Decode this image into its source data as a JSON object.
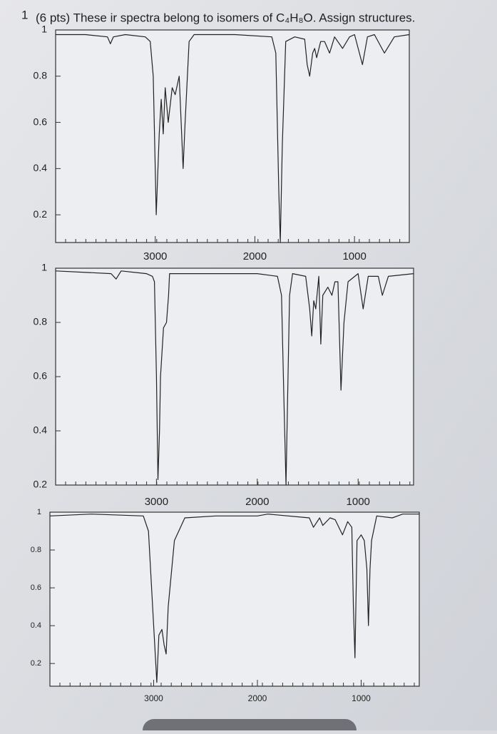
{
  "heading": {
    "number": "1",
    "text": "(6 pts) These ir spectra belong to isomers of C₄H₈O.  Assign structures."
  },
  "chart_data": [
    {
      "type": "line",
      "color": "#222222",
      "x": [
        4000,
        3700,
        3480,
        3450,
        3420,
        3300,
        3100,
        3050,
        3020,
        2990,
        2960,
        2940,
        2920,
        2900,
        2870,
        2830,
        2800,
        2760,
        2720,
        2700,
        2660,
        2610,
        2200,
        1830,
        1790,
        1760,
        1745,
        1725,
        1690,
        1600,
        1500,
        1475,
        1450,
        1420,
        1400,
        1380,
        1340,
        1300,
        1250,
        1200,
        1120,
        1050,
        1000,
        920,
        870,
        800,
        700,
        600,
        450
      ],
      "values": [
        0.98,
        0.98,
        0.97,
        0.94,
        0.97,
        0.98,
        0.97,
        0.95,
        0.8,
        0.2,
        0.55,
        0.7,
        0.55,
        0.75,
        0.6,
        0.75,
        0.72,
        0.8,
        0.4,
        0.6,
        0.95,
        0.98,
        0.98,
        0.97,
        0.9,
        0.3,
        0.08,
        0.5,
        0.95,
        0.97,
        0.96,
        0.85,
        0.8,
        0.9,
        0.92,
        0.88,
        0.95,
        0.95,
        0.9,
        0.97,
        0.92,
        0.97,
        0.98,
        0.85,
        0.97,
        0.98,
        0.9,
        0.97,
        0.98
      ],
      "xlim": [
        4000,
        450
      ],
      "ylim": [
        0.08,
        1.0
      ],
      "xticks": [
        3000,
        2000,
        1000
      ],
      "yticks": [
        0.2,
        0.4,
        0.6,
        0.8,
        1
      ]
    },
    {
      "type": "line",
      "color": "#222222",
      "x": [
        4000,
        3450,
        3400,
        3350,
        3100,
        3040,
        3020,
        3000,
        2985,
        2970,
        2960,
        2930,
        2900,
        2880,
        2870,
        2800,
        2000,
        1800,
        1760,
        1735,
        1715,
        1700,
        1680,
        1650,
        1520,
        1480,
        1460,
        1440,
        1420,
        1390,
        1370,
        1350,
        1300,
        1260,
        1230,
        1200,
        1170,
        1140,
        1100,
        1000,
        950,
        900,
        800,
        760,
        700,
        450
      ],
      "values": [
        0.99,
        0.98,
        0.96,
        0.99,
        0.98,
        0.97,
        0.95,
        0.6,
        0.22,
        0.4,
        0.6,
        0.78,
        0.8,
        0.9,
        0.98,
        0.98,
        0.98,
        0.97,
        0.9,
        0.5,
        0.2,
        0.5,
        0.9,
        0.98,
        0.97,
        0.85,
        0.75,
        0.88,
        0.85,
        0.97,
        0.72,
        0.9,
        0.93,
        0.9,
        0.95,
        0.95,
        0.55,
        0.8,
        0.95,
        0.98,
        0.85,
        0.97,
        0.97,
        0.9,
        0.97,
        0.98
      ],
      "xlim": [
        4000,
        450
      ],
      "ylim": [
        0.2,
        1.0
      ],
      "xticks": [
        3000,
        2000,
        1000
      ],
      "yticks": [
        0.2,
        0.4,
        0.6,
        0.8,
        1
      ]
    },
    {
      "type": "line",
      "color": "#222222",
      "x": [
        4000,
        3600,
        3100,
        3050,
        3000,
        2970,
        2950,
        2920,
        2900,
        2880,
        2860,
        2800,
        2700,
        2400,
        2000,
        1900,
        1500,
        1460,
        1400,
        1370,
        1300,
        1250,
        1180,
        1130,
        1090,
        1075,
        1060,
        1040,
        1000,
        970,
        945,
        930,
        915,
        900,
        850,
        700,
        600,
        440
      ],
      "values": [
        0.98,
        0.99,
        0.98,
        0.9,
        0.4,
        0.1,
        0.35,
        0.38,
        0.3,
        0.25,
        0.5,
        0.85,
        0.97,
        0.98,
        0.98,
        0.99,
        0.97,
        0.92,
        0.97,
        0.93,
        0.97,
        0.96,
        0.88,
        0.95,
        0.92,
        0.5,
        0.23,
        0.85,
        0.88,
        0.85,
        0.7,
        0.4,
        0.7,
        0.85,
        0.98,
        0.97,
        0.99,
        0.99
      ],
      "xlim": [
        4000,
        440
      ],
      "ylim": [
        0.08,
        1.0
      ],
      "xticks": [
        3000,
        2000,
        1000
      ],
      "yticks": [
        0.2,
        0.4,
        0.6,
        0.8,
        1
      ]
    }
  ]
}
